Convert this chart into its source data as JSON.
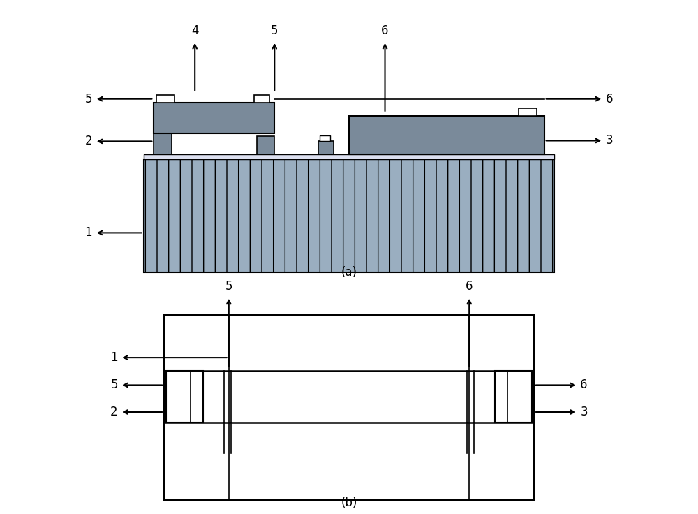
{
  "fig_width": 10.0,
  "fig_height": 7.36,
  "bg_color": "#ffffff",
  "substrate_color": "#9aaec0",
  "dark_element_color": "#7a8a9a",
  "light_film_color": "#e8e8f0",
  "black": "#000000",
  "label_a": "(a)",
  "label_b": "(b)",
  "font_size": 12
}
